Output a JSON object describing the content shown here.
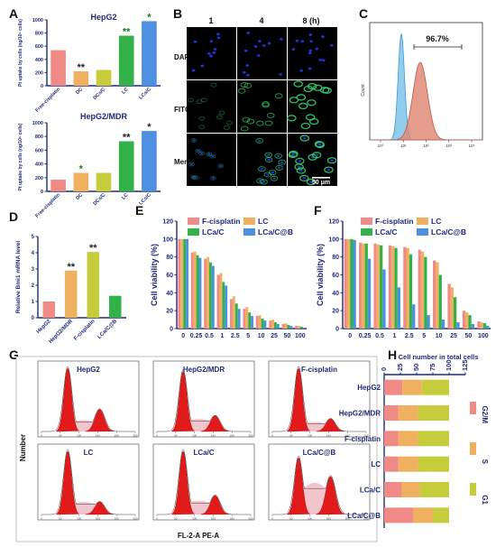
{
  "panel_letters": {
    "A": "A",
    "B": "B",
    "C": "C",
    "D": "D",
    "E": "E",
    "F": "F",
    "G": "G",
    "H": "H"
  },
  "colors": {
    "navy": "#1f2a78",
    "salmon": "#f08a86",
    "orange": "#efb160",
    "olive": "#c7cc3c",
    "green": "#33b24a",
    "blue": "#4d8fe0",
    "green_star": "#1a7a2a",
    "cyto_red": "#e11a1a",
    "cyto_fill": "#f2c5cd",
    "flow_blue": "#7fc6e8",
    "flow_red": "#e28b78",
    "fluor_blue": "#2033d8",
    "fluor_green": "#33d070"
  },
  "chart_data": [
    {
      "id": "A1",
      "type": "bar",
      "title": "HepG2",
      "ylabel": "Pt uptake by cells (ng/10⁵ cells)",
      "ylim": [
        0,
        1000
      ],
      "yticks": [
        0,
        200,
        400,
        600,
        800,
        1000
      ],
      "categories": [
        "Free-cisplatin",
        "DC",
        "DCs/C",
        "LC",
        "LCs/C"
      ],
      "values": [
        540,
        220,
        240,
        760,
        980
      ],
      "stars": [
        "",
        "**",
        "",
        "**",
        "*"
      ],
      "star_colors": [
        "",
        "#222222",
        "",
        "#1a7a2a",
        "#1a7a2a"
      ],
      "bar_colors": [
        "#f08a86",
        "#efb160",
        "#c7cc3c",
        "#33b24a",
        "#4d8fe0"
      ]
    },
    {
      "id": "A2",
      "type": "bar",
      "title": "HepG2/MDR",
      "ylabel": "Pt uptake by cells (ng/10⁵ cells)",
      "ylim": [
        0,
        1000
      ],
      "yticks": [
        0,
        200,
        400,
        600,
        800,
        1000
      ],
      "categories": [
        "Free-cisplatin",
        "DC",
        "DCs/C",
        "LC",
        "LCs/C"
      ],
      "values": [
        170,
        270,
        270,
        730,
        880
      ],
      "stars": [
        "",
        "*",
        "",
        "**",
        "*"
      ],
      "star_colors": [
        "",
        "#1a7a2a",
        "",
        "#222222",
        "#222222"
      ],
      "bar_colors": [
        "#f08a86",
        "#efb160",
        "#c7cc3c",
        "#33b24a",
        "#4d8fe0"
      ]
    },
    {
      "id": "D",
      "type": "bar",
      "ylabel": "Relative Bmi1 mRNA level",
      "ylim": [
        0,
        5
      ],
      "yticks": [
        0,
        1,
        2,
        3,
        4,
        5
      ],
      "categories": [
        "HepG2",
        "HepG2/MDR",
        "F-cisplatin",
        "LCa/C@B"
      ],
      "values": [
        1.0,
        2.9,
        4.05,
        1.35
      ],
      "stars": [
        "",
        "**",
        "**",
        ""
      ],
      "bar_colors": [
        "#f08a86",
        "#efb160",
        "#c7cc3c",
        "#33b24a"
      ]
    },
    {
      "id": "E",
      "type": "bar",
      "ylabel": "Cell viability (%)",
      "ylim": [
        0,
        120
      ],
      "yticks": [
        0,
        20,
        40,
        60,
        80,
        100,
        120
      ],
      "categories": [
        "0",
        "0.25",
        "0.5",
        "1",
        "2.5",
        "5",
        "10",
        "25",
        "50",
        "100"
      ],
      "series": [
        {
          "name": "F-cisplatin",
          "color": "#f08a86",
          "values": [
            100,
            85,
            78,
            60,
            33,
            22,
            14,
            9,
            5,
            3
          ]
        },
        {
          "name": "LC",
          "color": "#efb160",
          "values": [
            100,
            86,
            80,
            62,
            36,
            24,
            15,
            10,
            6,
            3
          ]
        },
        {
          "name": "LCa/C",
          "color": "#33b24a",
          "values": [
            100,
            82,
            74,
            52,
            28,
            18,
            11,
            7,
            4,
            2
          ]
        },
        {
          "name": "LCa/C@B",
          "color": "#4d8fe0",
          "values": [
            100,
            79,
            70,
            48,
            22,
            14,
            9,
            5,
            3,
            1
          ]
        }
      ]
    },
    {
      "id": "F",
      "type": "bar",
      "ylabel": "Cell viability (%)",
      "ylim": [
        0,
        120
      ],
      "yticks": [
        0,
        20,
        40,
        60,
        80,
        100,
        120
      ],
      "categories": [
        "0",
        "0.25",
        "0.5",
        "1",
        "2.5",
        "5",
        "10",
        "25",
        "50",
        "100"
      ],
      "series": [
        {
          "name": "F-cisplatin",
          "color": "#f08a86",
          "values": [
            100,
            96,
            95,
            93,
            91,
            88,
            76,
            50,
            20,
            8
          ]
        },
        {
          "name": "LC",
          "color": "#efb160",
          "values": [
            100,
            95,
            94,
            92,
            90,
            86,
            74,
            46,
            18,
            7
          ]
        },
        {
          "name": "LCa/C",
          "color": "#33b24a",
          "values": [
            100,
            95,
            93,
            90,
            83,
            80,
            60,
            35,
            15,
            6
          ]
        },
        {
          "name": "LCa/C@B",
          "color": "#4d8fe0",
          "values": [
            99,
            78,
            66,
            46,
            27,
            15,
            10,
            7,
            5,
            3
          ]
        }
      ]
    },
    {
      "id": "H",
      "type": "bar",
      "orientation": "horizontal",
      "stacked": true,
      "title": "Cell number in total cells",
      "xlim": [
        0,
        125
      ],
      "xticks": [
        0,
        25,
        50,
        75,
        100,
        125
      ],
      "categories": [
        "HepG2",
        "HepG2/MDR",
        "F-cisplatin",
        "LC",
        "LCa/C",
        "LCa/C@B"
      ],
      "series": [
        {
          "name": "G2/M",
          "color": "#f08a86",
          "values": [
            28,
            22,
            22,
            22,
            27,
            45
          ]
        },
        {
          "name": "S",
          "color": "#efb160",
          "values": [
            30,
            30,
            30,
            30,
            28,
            30
          ]
        },
        {
          "name": "G1",
          "color": "#c7cc3c",
          "values": [
            42,
            48,
            48,
            48,
            45,
            25
          ]
        }
      ]
    }
  ],
  "panel_B": {
    "columns": [
      "1",
      "4",
      "8 (h)"
    ],
    "rows": [
      "DAPI",
      "FITC",
      "Merge"
    ],
    "scale_bar": "50 μm"
  },
  "panel_C": {
    "percent": "96.7%",
    "ylabel": "Count",
    "xticks": [
      "10⁰",
      "10¹",
      "10²",
      "10³",
      "10⁴"
    ]
  },
  "panel_G": {
    "samples": [
      "HepG2",
      "HepG2/MDR",
      "F-cisplatin",
      "LC",
      "LCa/C",
      "LCa/C@B"
    ],
    "xlabel": "FL-2-A PE-A",
    "ylabel": "Number",
    "small_ticks": [
      "0",
      "50",
      "100",
      "150",
      "200",
      "250"
    ],
    "peaks": [
      {
        "g1": 1.0,
        "s": 0.18,
        "g2": 0.35
      },
      {
        "g1": 0.95,
        "s": 0.2,
        "g2": 0.25
      },
      {
        "g1": 1.0,
        "s": 0.15,
        "g2": 0.2
      },
      {
        "g1": 1.0,
        "s": 0.2,
        "g2": 0.2
      },
      {
        "g1": 1.0,
        "s": 0.22,
        "g2": 0.3
      },
      {
        "g1": 0.9,
        "s": 0.5,
        "g2": 0.6
      }
    ]
  }
}
